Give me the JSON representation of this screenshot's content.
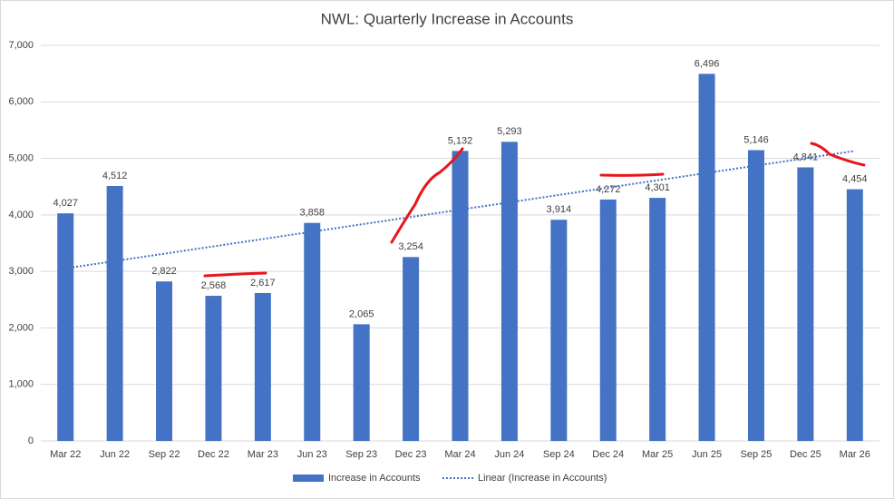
{
  "chart_data": {
    "type": "bar",
    "title": "NWL: Quarterly Increase in Accounts",
    "categories": [
      "Mar 22",
      "Jun 22",
      "Sep 22",
      "Dec 22",
      "Mar 23",
      "Jun 23",
      "Sep 23",
      "Dec 23",
      "Mar 24",
      "Jun 24",
      "Sep 24",
      "Dec 24",
      "Mar 25",
      "Jun 25",
      "Sep 25",
      "Dec 25",
      "Mar 26"
    ],
    "series": [
      {
        "name": "Increase in Accounts",
        "color": "#4472c4",
        "values": [
          4027,
          4512,
          2822,
          2568,
          2617,
          3858,
          2065,
          3254,
          5132,
          5293,
          3914,
          4272,
          4301,
          6496,
          5146,
          4841,
          4454
        ],
        "value_labels": [
          "4,027",
          "4,512",
          "2,822",
          "2,568",
          "2,617",
          "3,858",
          "2,065",
          "3,254",
          "5,132",
          "5,293",
          "3,914",
          "4,272",
          "4,301",
          "6,496",
          "5,146",
          "4,841",
          "4,454"
        ]
      }
    ],
    "trendline": {
      "kind": "linear",
      "name": "Linear (Increase in Accounts)",
      "color": "#4472c4"
    },
    "ylim": [
      0,
      7000
    ],
    "yticks": [
      {
        "value": 0,
        "label": "0"
      },
      {
        "value": 1000,
        "label": "1,000"
      },
      {
        "value": 2000,
        "label": "2,000"
      },
      {
        "value": 3000,
        "label": "3,000"
      },
      {
        "value": 4000,
        "label": "4,000"
      },
      {
        "value": 5000,
        "label": "5,000"
      },
      {
        "value": 6000,
        "label": "6,000"
      },
      {
        "value": 7000,
        "label": "7,000"
      }
    ],
    "grid": true,
    "legend": "bottom"
  }
}
